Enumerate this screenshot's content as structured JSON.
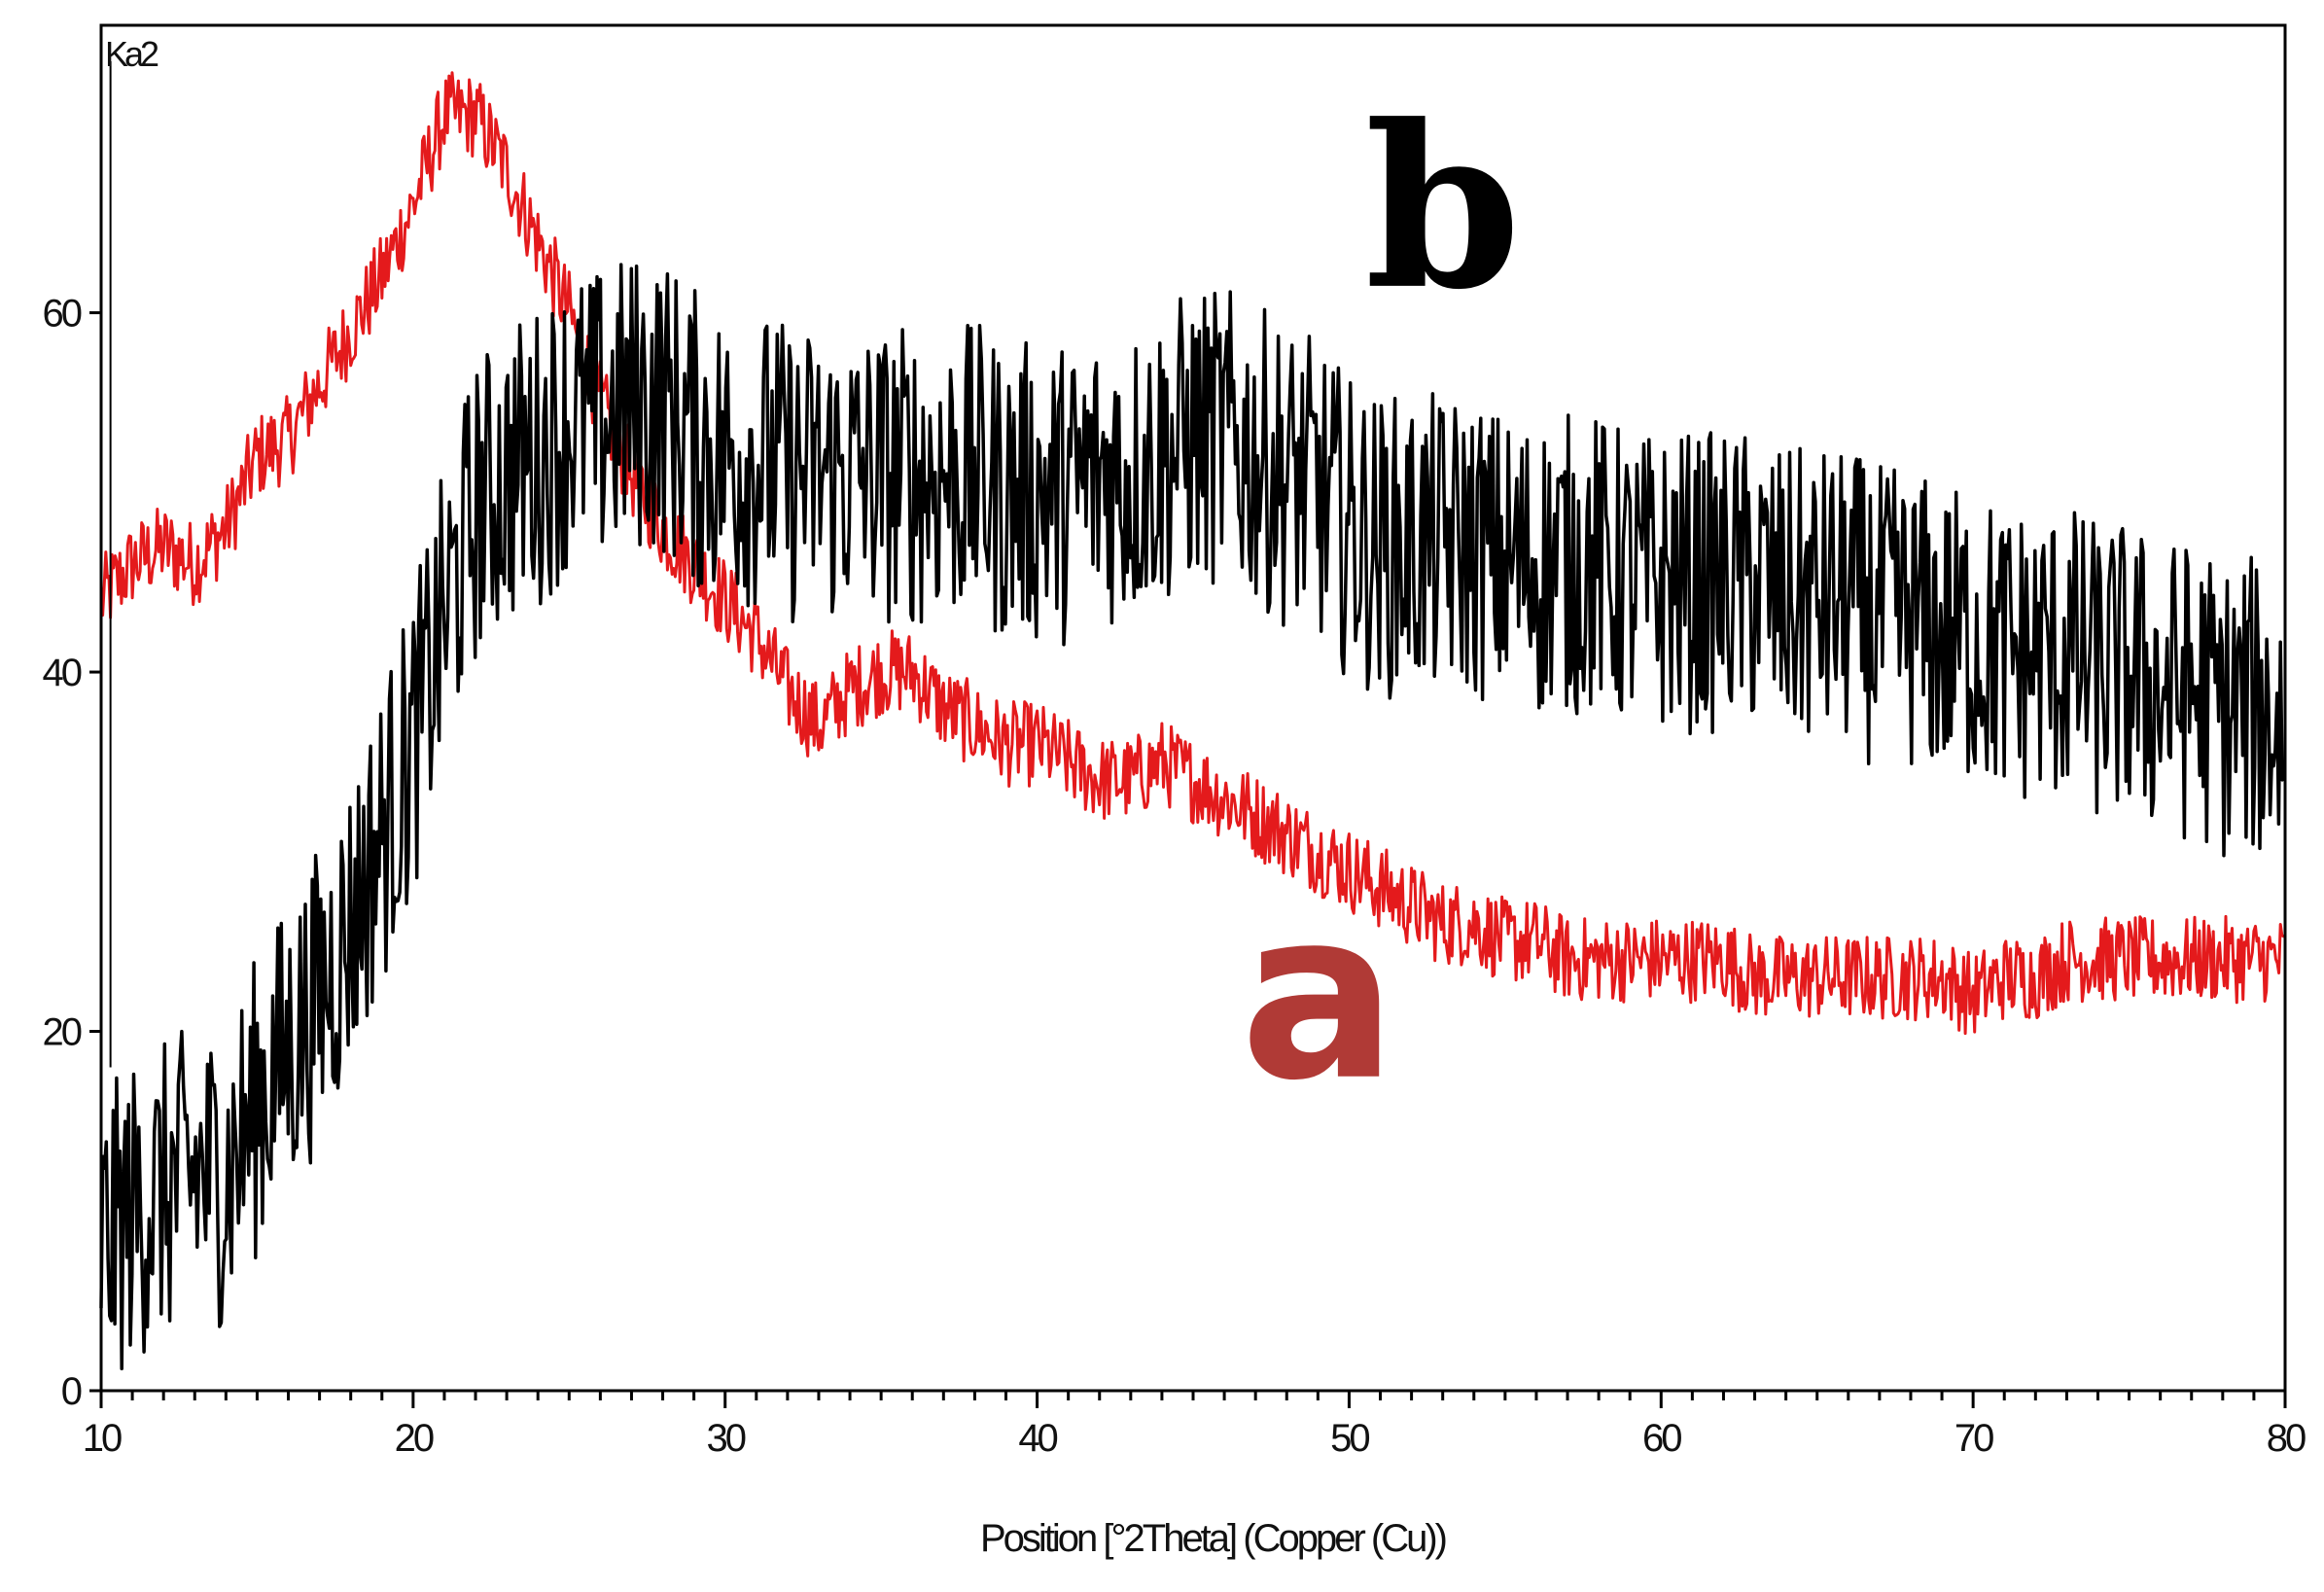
{
  "chart_data": {
    "type": "line",
    "title": "",
    "corner_label": "Ka2",
    "xlabel": "Position [°2Theta] (Copper (Cu))",
    "ylabel": "",
    "xlim": [
      10,
      80
    ],
    "ylim": [
      0,
      76
    ],
    "x_ticks": [
      10,
      20,
      30,
      40,
      50,
      60,
      70,
      80
    ],
    "y_ticks": [
      0,
      20,
      40,
      60
    ],
    "grid": false,
    "legend": "none",
    "series": [
      {
        "name": "a",
        "color": "#e41a1c",
        "x": [
          10,
          11,
          12,
          13,
          14,
          15,
          16,
          17,
          18,
          19,
          20,
          21,
          22,
          23,
          24,
          25,
          26,
          27,
          28,
          29,
          30,
          31,
          32,
          33,
          34,
          35,
          36,
          37,
          38,
          39,
          40,
          41,
          42,
          43,
          44,
          45,
          46,
          47,
          48,
          49,
          50,
          51,
          52,
          53,
          54,
          55,
          56,
          57,
          58,
          59,
          60,
          61,
          62,
          63,
          64,
          65,
          66,
          67,
          68,
          69,
          70,
          71,
          72,
          73,
          74,
          75,
          76,
          77,
          78,
          79,
          80
        ],
        "y": [
          44,
          46,
          47,
          46,
          48,
          52,
          53,
          56,
          59,
          62,
          66,
          71,
          71,
          68,
          64,
          60,
          55,
          51,
          48,
          46,
          44,
          42,
          39,
          37,
          39,
          40,
          40,
          38,
          37,
          36,
          36,
          35,
          34,
          34,
          35,
          34,
          33,
          32,
          31,
          30,
          29,
          28,
          27,
          26,
          26,
          25,
          25,
          24,
          24,
          24,
          24,
          24,
          24,
          23,
          23,
          23,
          23,
          23,
          23,
          23,
          22,
          23,
          23,
          24,
          24,
          24,
          24,
          24,
          24,
          24,
          24
        ]
      },
      {
        "name": "b",
        "color": "#000000",
        "x": [
          10,
          11,
          12,
          13,
          14,
          15,
          16,
          17,
          18,
          19,
          20,
          21,
          22,
          23,
          24,
          25,
          26,
          27,
          28,
          29,
          30,
          31,
          32,
          33,
          34,
          35,
          36,
          37,
          38,
          39,
          40,
          41,
          42,
          43,
          44,
          45,
          46,
          47,
          48,
          49,
          50,
          51,
          52,
          53,
          54,
          55,
          56,
          57,
          58,
          59,
          60,
          61,
          62,
          63,
          64,
          65,
          66,
          67,
          68,
          69,
          70,
          71,
          72,
          73,
          74,
          75,
          76,
          77,
          78,
          79,
          80
        ],
        "y": [
          8,
          10,
          11,
          12,
          12,
          16,
          19,
          22,
          26,
          31,
          36,
          43,
          49,
          51,
          52,
          54,
          54,
          55,
          55,
          53,
          52,
          52,
          51,
          51,
          51,
          51,
          51,
          51,
          51,
          50,
          50,
          50,
          51,
          51,
          52,
          53,
          53,
          52,
          51,
          50,
          48,
          47,
          47,
          47,
          47,
          46,
          46,
          46,
          46,
          45,
          45,
          45,
          45,
          45,
          44,
          44,
          44,
          43,
          43,
          42,
          42,
          41,
          41,
          41,
          40,
          40,
          39,
          39,
          38,
          38,
          37
        ]
      }
    ]
  }
}
